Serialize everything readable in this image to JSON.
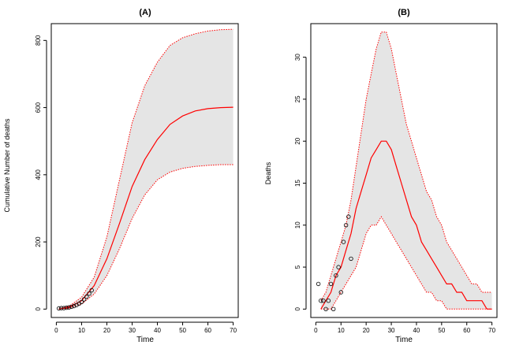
{
  "chart_data": [
    {
      "type": "line",
      "title": "(A)",
      "xlabel": "Time",
      "ylabel": "Cumulative Number of deaths",
      "xlim": [
        -2,
        72
      ],
      "ylim": [
        -25,
        850
      ],
      "x_ticks": [
        0,
        10,
        20,
        30,
        40,
        50,
        60,
        70
      ],
      "y_ticks": [
        0,
        200,
        400,
        600,
        800
      ],
      "band_color": "#e5e5e5",
      "line_color": "#ff0000",
      "point_color": "#000000",
      "series": [
        {
          "name": "",
          "role": "median",
          "style": "solid",
          "x": [
            1,
            5,
            10,
            15,
            20,
            25,
            30,
            35,
            40,
            45,
            50,
            55,
            60,
            65,
            70
          ],
          "y": [
            0,
            5,
            25,
            70,
            150,
            255,
            365,
            445,
            505,
            550,
            575,
            590,
            597,
            600,
            601
          ]
        },
        {
          "name": "",
          "role": "upper",
          "style": "dotted",
          "x": [
            1,
            5,
            10,
            15,
            20,
            25,
            30,
            35,
            40,
            45,
            50,
            55,
            60,
            65,
            70
          ],
          "y": [
            1,
            8,
            35,
            95,
            215,
            385,
            555,
            665,
            735,
            785,
            808,
            820,
            828,
            832,
            833
          ]
        },
        {
          "name": "",
          "role": "lower",
          "style": "dotted",
          "x": [
            1,
            5,
            10,
            15,
            20,
            25,
            30,
            35,
            40,
            45,
            50,
            55,
            60,
            65,
            70
          ],
          "y": [
            0,
            3,
            15,
            45,
            100,
            180,
            270,
            340,
            385,
            408,
            419,
            425,
            428,
            430,
            430
          ]
        },
        {
          "name": "",
          "role": "observed",
          "style": "points",
          "x": [
            1,
            2,
            3,
            4,
            5,
            6,
            7,
            8,
            9,
            10,
            11,
            12,
            13,
            14
          ],
          "y": [
            2,
            3,
            3,
            4,
            5,
            7,
            9,
            12,
            16,
            21,
            29,
            37,
            46,
            56
          ]
        }
      ]
    },
    {
      "type": "line",
      "title": "(B)",
      "xlabel": "Time",
      "ylabel": "Deaths",
      "xlim": [
        -2,
        72
      ],
      "ylim": [
        -1,
        34
      ],
      "x_ticks": [
        0,
        10,
        20,
        30,
        40,
        50,
        60,
        70
      ],
      "y_ticks": [
        0,
        5,
        10,
        15,
        20,
        25,
        30
      ],
      "band_color": "#e5e5e5",
      "line_color": "#ff0000",
      "point_color": "#000000",
      "series": [
        {
          "name": "",
          "role": "median",
          "style": "solid",
          "x": [
            2,
            4,
            6,
            8,
            10,
            12,
            14,
            16,
            18,
            20,
            22,
            24,
            26,
            28,
            30,
            32,
            34,
            36,
            38,
            40,
            42,
            44,
            46,
            48,
            50,
            52,
            54,
            56,
            58,
            60,
            62,
            64,
            66,
            68,
            70
          ],
          "y": [
            0,
            1,
            2,
            4,
            5,
            7,
            9,
            12,
            14,
            16,
            18,
            19,
            20,
            20,
            19,
            17,
            15,
            13,
            11,
            10,
            8,
            7,
            6,
            5,
            4,
            3,
            3,
            2,
            2,
            1,
            1,
            1,
            1,
            0,
            0
          ]
        },
        {
          "name": "",
          "role": "upper",
          "style": "dotted",
          "x": [
            2,
            4,
            6,
            8,
            10,
            12,
            14,
            16,
            18,
            20,
            22,
            24,
            26,
            28,
            30,
            32,
            34,
            36,
            38,
            40,
            42,
            44,
            46,
            48,
            50,
            52,
            54,
            56,
            58,
            60,
            62,
            64,
            66,
            68,
            70
          ],
          "y": [
            1,
            2,
            4,
            6,
            8,
            10,
            13,
            17,
            21,
            25,
            28,
            31,
            33,
            33,
            31,
            28,
            25,
            22,
            20,
            18,
            16,
            14,
            13,
            11,
            10,
            8,
            7,
            6,
            5,
            4,
            3,
            3,
            2,
            2,
            2
          ]
        },
        {
          "name": "",
          "role": "lower",
          "style": "dotted",
          "x": [
            2,
            4,
            6,
            8,
            10,
            12,
            14,
            16,
            18,
            20,
            22,
            24,
            26,
            28,
            30,
            32,
            34,
            36,
            38,
            40,
            42,
            44,
            46,
            48,
            50,
            52,
            54,
            56,
            58,
            60,
            62,
            64,
            66,
            68,
            70
          ],
          "y": [
            0,
            0,
            0,
            1,
            2,
            3,
            4,
            5,
            7,
            9,
            10,
            10,
            11,
            10,
            9,
            8,
            7,
            6,
            5,
            4,
            3,
            2,
            2,
            1,
            1,
            0,
            0,
            0,
            0,
            0,
            0,
            0,
            0,
            0,
            0
          ]
        },
        {
          "name": "",
          "role": "observed",
          "style": "points",
          "x": [
            1,
            2,
            3,
            4,
            5,
            6,
            7,
            8,
            9,
            10,
            11,
            12,
            13,
            14
          ],
          "y": [
            3,
            1,
            1,
            0,
            1,
            3,
            0,
            4,
            5,
            2,
            8,
            10,
            11,
            6
          ]
        }
      ]
    }
  ]
}
